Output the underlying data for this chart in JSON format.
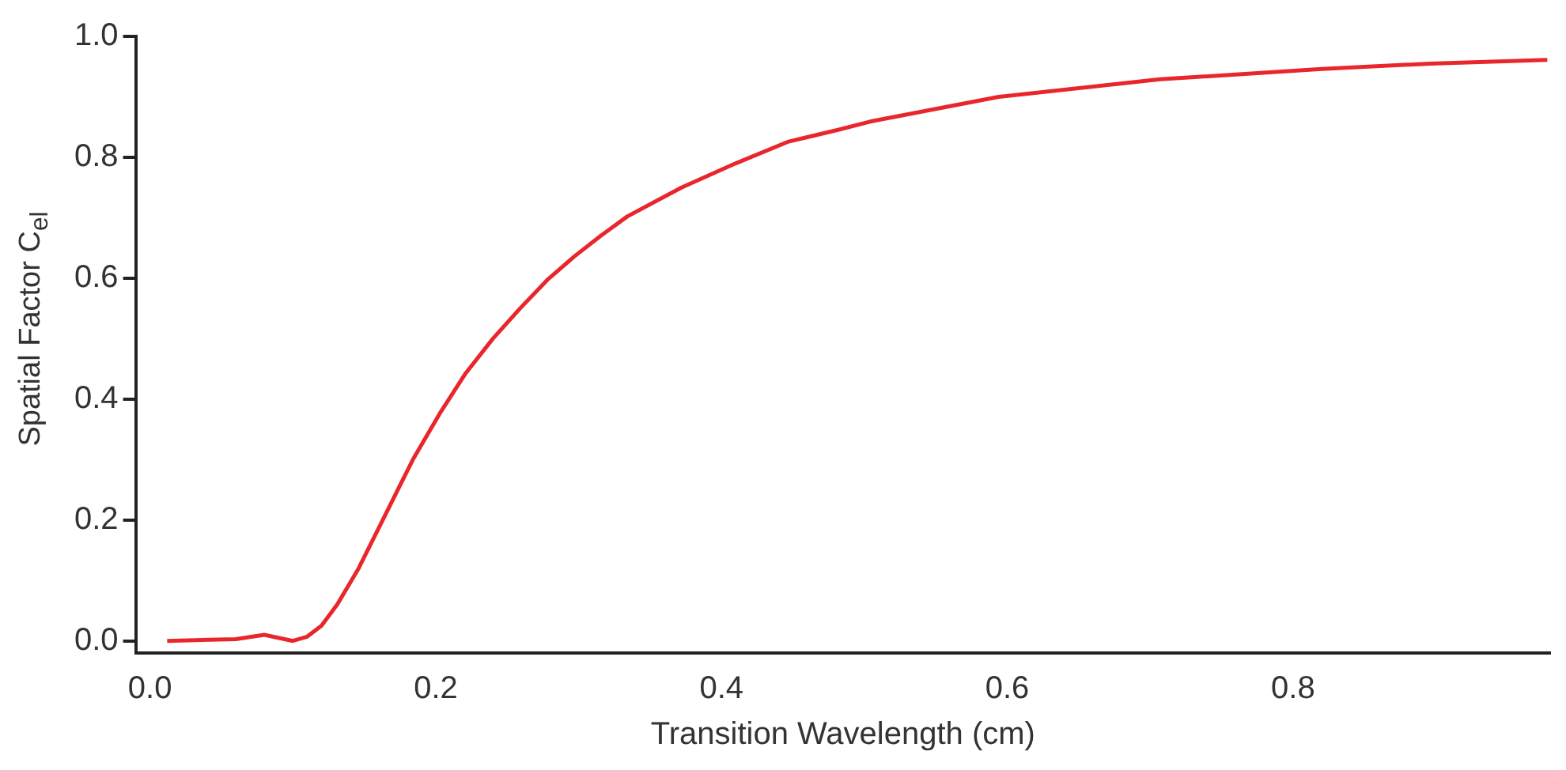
{
  "chart_data": {
    "type": "line",
    "xlabel": "Transition Wavelength (cm)",
    "ylabel": "Spatial Factor C$_{el}$",
    "x": [
      0.012,
      0.06,
      0.08,
      0.1,
      0.11,
      0.12,
      0.131,
      0.146,
      0.165,
      0.184,
      0.203,
      0.221,
      0.24,
      0.259,
      0.278,
      0.297,
      0.316,
      0.334,
      0.372,
      0.41,
      0.447,
      0.481,
      0.504,
      0.594,
      0.707,
      0.82,
      0.896,
      0.978
    ],
    "series": [
      {
        "color": "#e8262c",
        "values": [
          0,
          0.003,
          0.01,
          0,
          0.007,
          0.025,
          0.06,
          0.12,
          0.21,
          0.3,
          0.377,
          0.443,
          0.5,
          0.55,
          0.597,
          0.636,
          0.671,
          0.702,
          0.75,
          0.79,
          0.826,
          0.845,
          0.859,
          0.9,
          0.929,
          0.946,
          0.955,
          0.961
        ]
      }
    ],
    "xlim": [
      -0.01,
      0.98
    ],
    "ylim": [
      -0.02,
      1.0
    ],
    "xticks": [
      {
        "value": 0,
        "label": "0.0"
      },
      0.2,
      0.4,
      0.6,
      0.8
    ],
    "yticks": [
      {
        "value": 0,
        "label": "0.0"
      },
      0.2,
      0.4,
      0.6,
      0.8,
      {
        "value": 1,
        "label": "1.0"
      }
    ],
    "grid": false,
    "legend": false,
    "marker": "none",
    "line_style": "solid"
  }
}
